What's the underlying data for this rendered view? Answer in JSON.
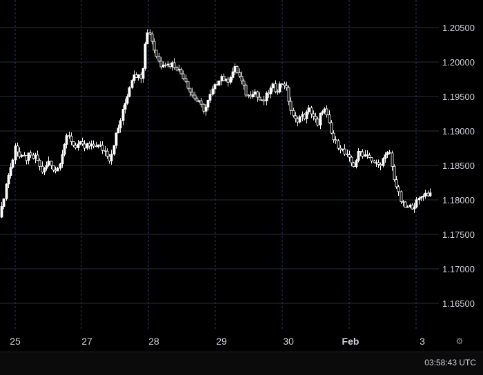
{
  "colors": {
    "background": "#000000",
    "candle_up": "#ffffff",
    "candle_down": "#000000",
    "grid_horizontal": "#2a2e39",
    "grid_vertical": "#1f3b63",
    "text": "#d1d4dc"
  },
  "chart_data": {
    "type": "candlestick",
    "x_ticks": [
      "25",
      "27",
      "28",
      "29",
      "30",
      "Feb",
      "3"
    ],
    "y_ticks": [
      "1.20500",
      "1.20000",
      "1.19500",
      "1.19000",
      "1.18500",
      "1.18000",
      "1.17500",
      "1.17000",
      "1.16500"
    ],
    "ylim": [
      1.1605,
      1.2095
    ],
    "grid": true,
    "close_path": [
      [
        0,
        1.1775
      ],
      [
        6,
        1.181
      ],
      [
        10,
        1.183
      ],
      [
        14,
        1.1845
      ],
      [
        18,
        1.1855
      ],
      [
        22,
        1.1885
      ],
      [
        26,
        1.1865
      ],
      [
        30,
        1.186
      ],
      [
        34,
        1.1862
      ],
      [
        38,
        1.186
      ],
      [
        42,
        1.1865
      ],
      [
        46,
        1.186
      ],
      [
        50,
        1.1862
      ],
      [
        54,
        1.1858
      ],
      [
        58,
        1.1845
      ],
      [
        62,
        1.184
      ],
      [
        66,
        1.1848
      ],
      [
        70,
        1.1855
      ],
      [
        74,
        1.185
      ],
      [
        78,
        1.1845
      ],
      [
        82,
        1.1842
      ],
      [
        86,
        1.1855
      ],
      [
        90,
        1.187
      ],
      [
        94,
        1.1885
      ],
      [
        98,
        1.1892
      ],
      [
        102,
        1.1888
      ],
      [
        106,
        1.188
      ],
      [
        110,
        1.1878
      ],
      [
        114,
        1.1882
      ],
      [
        118,
        1.1878
      ],
      [
        122,
        1.1875
      ],
      [
        126,
        1.188
      ],
      [
        130,
        1.1876
      ],
      [
        134,
        1.1878
      ],
      [
        138,
        1.188
      ],
      [
        142,
        1.1878
      ],
      [
        146,
        1.1876
      ],
      [
        150,
        1.1872
      ],
      [
        154,
        1.1868
      ],
      [
        158,
        1.186
      ],
      [
        162,
        1.187
      ],
      [
        166,
        1.189
      ],
      [
        170,
        1.19
      ],
      [
        174,
        1.1915
      ],
      [
        178,
        1.193
      ],
      [
        182,
        1.1945
      ],
      [
        186,
        1.196
      ],
      [
        190,
        1.1975
      ],
      [
        194,
        1.1985
      ],
      [
        198,
        1.198
      ],
      [
        202,
        1.1978
      ],
      [
        206,
        1.1985
      ],
      [
        208,
        1.201
      ],
      [
        210,
        1.203
      ],
      [
        212,
        1.204
      ],
      [
        216,
        1.2045
      ],
      [
        220,
        1.203
      ],
      [
        224,
        1.2015
      ],
      [
        228,
        1.2005
      ],
      [
        232,
        1.1995
      ],
      [
        236,
        1.2
      ],
      [
        240,
        1.1998
      ],
      [
        244,
        1.1995
      ],
      [
        248,
        1.1998
      ],
      [
        252,
        1.1995
      ],
      [
        256,
        1.1992
      ],
      [
        260,
        1.1985
      ],
      [
        264,
        1.1982
      ],
      [
        268,
        1.1975
      ],
      [
        272,
        1.1965
      ],
      [
        276,
        1.1955
      ],
      [
        280,
        1.195
      ],
      [
        284,
        1.1945
      ],
      [
        288,
        1.194
      ],
      [
        292,
        1.1935
      ],
      [
        296,
        1.193
      ],
      [
        300,
        1.194
      ],
      [
        304,
        1.195
      ],
      [
        308,
        1.196
      ],
      [
        312,
        1.1965
      ],
      [
        316,
        1.1975
      ],
      [
        320,
        1.198
      ],
      [
        324,
        1.1975
      ],
      [
        328,
        1.197
      ],
      [
        332,
        1.1978
      ],
      [
        336,
        1.1985
      ],
      [
        340,
        1.199
      ],
      [
        344,
        1.1985
      ],
      [
        348,
        1.1975
      ],
      [
        352,
        1.1965
      ],
      [
        356,
        1.1955
      ],
      [
        360,
        1.195
      ],
      [
        364,
        1.1955
      ],
      [
        368,
        1.196
      ],
      [
        372,
        1.195
      ],
      [
        376,
        1.1945
      ],
      [
        380,
        1.194
      ],
      [
        384,
        1.1948
      ],
      [
        388,
        1.1955
      ],
      [
        392,
        1.196
      ],
      [
        396,
        1.1965
      ],
      [
        400,
        1.1958
      ],
      [
        404,
        1.1965
      ],
      [
        408,
        1.197
      ],
      [
        412,
        1.1968
      ],
      [
        416,
        1.1955
      ],
      [
        420,
        1.1935
      ],
      [
        424,
        1.192
      ],
      [
        428,
        1.1915
      ],
      [
        432,
        1.1918
      ],
      [
        436,
        1.1922
      ],
      [
        440,
        1.192
      ],
      [
        444,
        1.1925
      ],
      [
        448,
        1.1932
      ],
      [
        452,
        1.1925
      ],
      [
        456,
        1.1918
      ],
      [
        460,
        1.1905
      ],
      [
        464,
        1.1925
      ],
      [
        468,
        1.1935
      ],
      [
        472,
        1.1925
      ],
      [
        476,
        1.191
      ],
      [
        480,
        1.1895
      ],
      [
        484,
        1.1885
      ],
      [
        488,
        1.188
      ],
      [
        492,
        1.1878
      ],
      [
        496,
        1.1872
      ],
      [
        500,
        1.1865
      ],
      [
        504,
        1.186
      ],
      [
        508,
        1.1855
      ],
      [
        512,
        1.185
      ],
      [
        516,
        1.186
      ],
      [
        520,
        1.187
      ],
      [
        524,
        1.1868
      ],
      [
        528,
        1.1865
      ],
      [
        532,
        1.1868
      ],
      [
        536,
        1.186
      ],
      [
        540,
        1.185
      ],
      [
        544,
        1.1855
      ],
      [
        548,
        1.185
      ],
      [
        552,
        1.1855
      ],
      [
        556,
        1.186
      ],
      [
        560,
        1.1865
      ],
      [
        564,
        1.187
      ],
      [
        566,
        1.1855
      ],
      [
        570,
        1.1835
      ],
      [
        574,
        1.182
      ],
      [
        578,
        1.1805
      ],
      [
        582,
        1.1795
      ],
      [
        586,
        1.179
      ],
      [
        590,
        1.1788
      ],
      [
        594,
        1.179
      ],
      [
        598,
        1.1792
      ],
      [
        602,
        1.1795
      ],
      [
        606,
        1.18
      ],
      [
        610,
        1.1805
      ],
      [
        614,
        1.181
      ],
      [
        618,
        1.1808
      ],
      [
        622,
        1.181
      ],
      [
        626,
        1.1808
      ]
    ]
  },
  "footer": {
    "clock": "03:58:43 UTC"
  },
  "icons": {
    "settings": "gear-icon"
  }
}
